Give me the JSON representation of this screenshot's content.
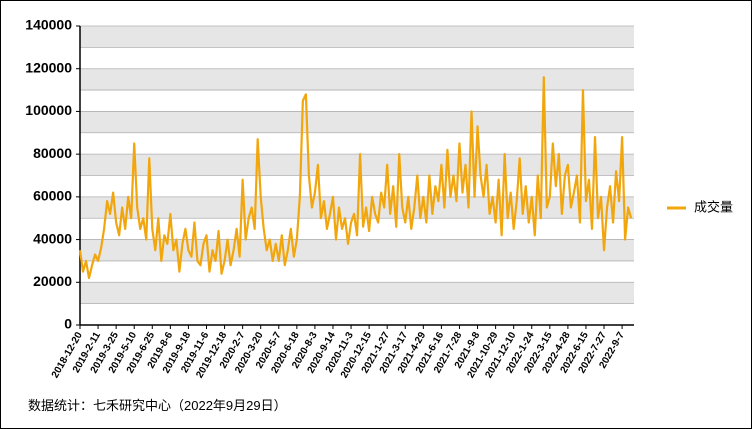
{
  "chart_data": {
    "type": "line",
    "categories": [
      "2018-12-20",
      null,
      null,
      null,
      null,
      null,
      "2019-2-11",
      null,
      null,
      null,
      null,
      null,
      "2019-3-25",
      null,
      null,
      null,
      null,
      null,
      "2019-5-10",
      null,
      null,
      null,
      null,
      null,
      "2019-6-25",
      null,
      null,
      null,
      null,
      null,
      "2019-8-6",
      null,
      null,
      null,
      null,
      null,
      "2019-9-18",
      null,
      null,
      null,
      null,
      null,
      "2019-11-6",
      null,
      null,
      null,
      null,
      null,
      "2019-12-18",
      null,
      null,
      null,
      null,
      null,
      "2020-2-7",
      null,
      null,
      null,
      null,
      null,
      "2020-3-20",
      null,
      null,
      null,
      null,
      null,
      "2020-5-7",
      null,
      null,
      null,
      null,
      null,
      "2020-6-18",
      null,
      null,
      null,
      null,
      null,
      "2020-8-3",
      null,
      null,
      null,
      null,
      null,
      "2020-9-14",
      null,
      null,
      null,
      null,
      null,
      "2020-11-3",
      null,
      null,
      null,
      null,
      null,
      "2020-12-15",
      null,
      null,
      null,
      null,
      null,
      "2021-1-27",
      null,
      null,
      null,
      null,
      null,
      "2021-3-17",
      null,
      null,
      null,
      null,
      null,
      "2021-4-29",
      null,
      null,
      null,
      null,
      null,
      "2021-6-16",
      null,
      null,
      null,
      null,
      null,
      "2021-7-28",
      null,
      null,
      null,
      null,
      null,
      "2021-9-8",
      null,
      null,
      null,
      null,
      null,
      "2021-10-29",
      null,
      null,
      null,
      null,
      null,
      "2021-12-10",
      null,
      null,
      null,
      null,
      null,
      "2022-1-24",
      null,
      null,
      null,
      null,
      null,
      "2022-3-15",
      null,
      null,
      null,
      null,
      null,
      "2022-4-28",
      null,
      null,
      null,
      null,
      null,
      "2022-6-15",
      null,
      null,
      null,
      null,
      null,
      "2022-7-27",
      null,
      null,
      null,
      null,
      null,
      "2022-9-7",
      null,
      null,
      null
    ],
    "series": [
      {
        "name": "成交量",
        "color": "#f2a60d",
        "values": [
          35000,
          25000,
          30000,
          22000,
          28000,
          33000,
          30000,
          36000,
          45000,
          58000,
          52000,
          62000,
          48000,
          42000,
          55000,
          45000,
          60000,
          50000,
          85000,
          55000,
          45000,
          50000,
          40000,
          78000,
          45000,
          35000,
          50000,
          30000,
          42000,
          38000,
          52000,
          35000,
          40000,
          25000,
          38000,
          45000,
          35000,
          32000,
          48000,
          30000,
          28000,
          38000,
          42000,
          25000,
          35000,
          30000,
          44000,
          24000,
          30000,
          40000,
          28000,
          35000,
          45000,
          32000,
          68000,
          40000,
          50000,
          55000,
          45000,
          87000,
          60000,
          45000,
          35000,
          40000,
          30000,
          38000,
          30000,
          42000,
          28000,
          35000,
          45000,
          32000,
          40000,
          60000,
          105000,
          108000,
          70000,
          55000,
          62000,
          75000,
          50000,
          58000,
          45000,
          52000,
          60000,
          40000,
          55000,
          45000,
          50000,
          38000,
          48000,
          52000,
          42000,
          80000,
          46000,
          55000,
          44000,
          60000,
          52000,
          48000,
          62000,
          55000,
          75000,
          52000,
          65000,
          46000,
          80000,
          55000,
          48000,
          60000,
          45000,
          55000,
          70000,
          50000,
          60000,
          48000,
          70000,
          52000,
          65000,
          58000,
          75000,
          55000,
          82000,
          60000,
          70000,
          58000,
          85000,
          62000,
          75000,
          55000,
          100000,
          60000,
          93000,
          70000,
          60000,
          75000,
          52000,
          60000,
          48000,
          68000,
          42000,
          80000,
          50000,
          62000,
          45000,
          58000,
          78000,
          52000,
          65000,
          48000,
          60000,
          42000,
          70000,
          50000,
          116000,
          55000,
          60000,
          85000,
          65000,
          80000,
          52000,
          70000,
          75000,
          55000,
          62000,
          70000,
          48000,
          110000,
          58000,
          68000,
          45000,
          88000,
          50000,
          60000,
          35000,
          55000,
          65000,
          48000,
          72000,
          58000,
          88000,
          40000,
          55000,
          50000
        ]
      }
    ],
    "ylim": [
      0,
      140000
    ],
    "yticks": [
      0,
      20000,
      40000,
      60000,
      80000,
      100000,
      120000,
      140000
    ],
    "grid": true,
    "legend": "right",
    "source": "数据统计：七禾研究中心（2022年9月29日）"
  }
}
